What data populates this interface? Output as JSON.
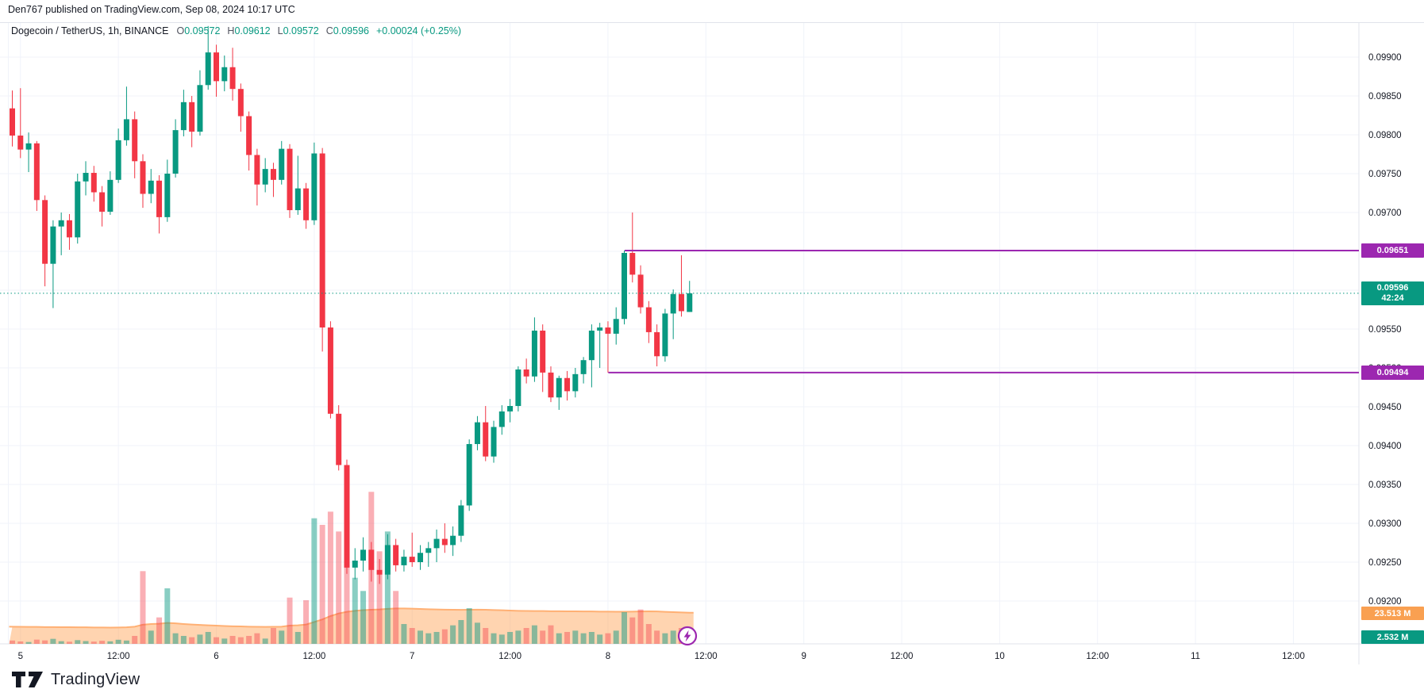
{
  "header": {
    "published_line": "Den767 published on TradingView.com, Sep 08, 2024 10:17 UTC"
  },
  "legend": {
    "symbol": "Dogecoin / TetherUS, 1h, BINANCE",
    "open_label": "O",
    "open": "0.09572",
    "high_label": "H",
    "high": "0.09612",
    "low_label": "L",
    "low": "0.09572",
    "close_label": "C",
    "close": "0.09596",
    "change": "+0.00024 (+0.25%)"
  },
  "footer": {
    "brand": "TradingView"
  },
  "colors": {
    "up": "#089981",
    "down": "#f23645",
    "vol_up": "rgba(8,153,129,0.48)",
    "vol_down": "rgba(242,54,69,0.40)",
    "ma_fill": "rgba(255,160,80,0.45)",
    "ma_line": "#ffb074",
    "level": "#9c27b0",
    "last_line": "#089981",
    "grid": "#f0f3fa",
    "border": "#e0e3eb",
    "axis_text": "#131722",
    "badge_orange": "#f9a051",
    "badge_teal": "#089981",
    "badge_purple": "#9c27b0"
  },
  "chart_data": {
    "type": "candlestick",
    "title": "Dogecoin / TetherUS, 1h, BINANCE",
    "interval": "1h",
    "price_scale": 1e-05,
    "y_axis": {
      "min": 0.092,
      "max": 0.099,
      "step": 0.0005,
      "tick_prices": [
        9900,
        9850,
        9800,
        9750,
        9700,
        9650,
        9600,
        9550,
        9500,
        9450,
        9400,
        9350,
        9300,
        9250,
        9200
      ]
    },
    "x_axis": {
      "grid": true,
      "ticks": [
        {
          "label": "5",
          "i": 1
        },
        {
          "label": "12:00",
          "i": 13
        },
        {
          "label": "6",
          "i": 25
        },
        {
          "label": "12:00",
          "i": 37
        },
        {
          "label": "7",
          "i": 49
        },
        {
          "label": "12:00",
          "i": 61
        },
        {
          "label": "8",
          "i": 73
        },
        {
          "label": "12:00",
          "i": 85
        },
        {
          "label": "9",
          "i": 97
        },
        {
          "label": "12:00",
          "i": 109
        },
        {
          "label": "10",
          "i": 121
        },
        {
          "label": "12:00",
          "i": 133
        },
        {
          "label": "11",
          "i": 145
        },
        {
          "label": "12:00",
          "i": 157
        }
      ]
    },
    "candles": [
      [
        9834,
        9857,
        9785,
        9799
      ],
      [
        9799,
        9860,
        9770,
        9781
      ],
      [
        9781,
        9803,
        9752,
        9789
      ],
      [
        9789,
        9792,
        9702,
        9716
      ],
      [
        9716,
        9722,
        9605,
        9634
      ],
      [
        9634,
        9690,
        9577,
        9682
      ],
      [
        9682,
        9700,
        9645,
        9690
      ],
      [
        9690,
        9698,
        9652,
        9668
      ],
      [
        9668,
        9750,
        9660,
        9740
      ],
      [
        9740,
        9766,
        9722,
        9751
      ],
      [
        9751,
        9760,
        9714,
        9726
      ],
      [
        9726,
        9734,
        9682,
        9701
      ],
      [
        9701,
        9753,
        9697,
        9742
      ],
      [
        9742,
        9808,
        9738,
        9793
      ],
      [
        9793,
        9862,
        9786,
        9820
      ],
      [
        9820,
        9830,
        9744,
        9766
      ],
      [
        9766,
        9775,
        9706,
        9724
      ],
      [
        9724,
        9756,
        9712,
        9741
      ],
      [
        9741,
        9748,
        9673,
        9694
      ],
      [
        9694,
        9768,
        9688,
        9750
      ],
      [
        9750,
        9820,
        9745,
        9806
      ],
      [
        9806,
        9858,
        9798,
        9842
      ],
      [
        9842,
        9850,
        9784,
        9804
      ],
      [
        9804,
        9883,
        9799,
        9864
      ],
      [
        9864,
        9940,
        9858,
        9906
      ],
      [
        9906,
        9916,
        9849,
        9869
      ],
      [
        9869,
        9902,
        9856,
        9887
      ],
      [
        9887,
        9912,
        9844,
        9859
      ],
      [
        9859,
        9866,
        9804,
        9824
      ],
      [
        9824,
        9830,
        9754,
        9774
      ],
      [
        9774,
        9782,
        9709,
        9736
      ],
      [
        9736,
        9770,
        9726,
        9756
      ],
      [
        9756,
        9764,
        9720,
        9742
      ],
      [
        9742,
        9792,
        9736,
        9782
      ],
      [
        9782,
        9788,
        9693,
        9703
      ],
      [
        9703,
        9773,
        9697,
        9731
      ],
      [
        9731,
        9738,
        9679,
        9690
      ],
      [
        9690,
        9790,
        9684,
        9776
      ],
      [
        9776,
        9783,
        9521,
        9552
      ],
      [
        9552,
        9560,
        9435,
        9441
      ],
      [
        9441,
        9452,
        9368,
        9375
      ],
      [
        9375,
        9382,
        9235,
        9243
      ],
      [
        9243,
        9268,
        9228,
        9252
      ],
      [
        9252,
        9282,
        9238,
        9266
      ],
      [
        9266,
        9276,
        9225,
        9240
      ],
      [
        9240,
        9254,
        9222,
        9234
      ],
      [
        9234,
        9286,
        9228,
        9272
      ],
      [
        9272,
        9280,
        9238,
        9246
      ],
      [
        9246,
        9266,
        9238,
        9257
      ],
      [
        9257,
        9288,
        9244,
        9250
      ],
      [
        9250,
        9272,
        9240,
        9262
      ],
      [
        9262,
        9276,
        9244,
        9268
      ],
      [
        9268,
        9292,
        9250,
        9280
      ],
      [
        9280,
        9300,
        9262,
        9272
      ],
      [
        9272,
        9296,
        9258,
        9284
      ],
      [
        9284,
        9330,
        9276,
        9323
      ],
      [
        9323,
        9408,
        9316,
        9402
      ],
      [
        9402,
        9438,
        9394,
        9430
      ],
      [
        9430,
        9451,
        9380,
        9386
      ],
      [
        9386,
        9432,
        9378,
        9424
      ],
      [
        9424,
        9452,
        9414,
        9444
      ],
      [
        9444,
        9460,
        9430,
        9451
      ],
      [
        9451,
        9502,
        9444,
        9498
      ],
      [
        9498,
        9512,
        9480,
        9489
      ],
      [
        9489,
        9565,
        9482,
        9548
      ],
      [
        9548,
        9556,
        9469,
        9494
      ],
      [
        9494,
        9502,
        9456,
        9462
      ],
      [
        9462,
        9490,
        9446,
        9487
      ],
      [
        9487,
        9496,
        9458,
        9470
      ],
      [
        9470,
        9500,
        9462,
        9492
      ],
      [
        9492,
        9514,
        9480,
        9510
      ],
      [
        9510,
        9556,
        9475,
        9548
      ],
      [
        9548,
        9558,
        9500,
        9552
      ],
      [
        9552,
        9560,
        9494,
        9544
      ],
      [
        9544,
        9578,
        9530,
        9563
      ],
      [
        9563,
        9651,
        9556,
        9648
      ],
      [
        9648,
        9700,
        9610,
        9620
      ],
      [
        9620,
        9632,
        9570,
        9578
      ],
      [
        9578,
        9586,
        9532,
        9546
      ],
      [
        9546,
        9556,
        9502,
        9515
      ],
      [
        9515,
        9576,
        9508,
        9570
      ],
      [
        9570,
        9601,
        9537,
        9595
      ],
      [
        9595,
        9645,
        9566,
        9573
      ],
      [
        9572,
        9612,
        9572,
        9596
      ]
    ],
    "volume_m": [
      2.5,
      1.8,
      1.4,
      3.2,
      2.6,
      3.8,
      2.0,
      1.6,
      2.8,
      2.1,
      1.7,
      2.3,
      1.9,
      3.1,
      2.5,
      6,
      55,
      10,
      20,
      42,
      8,
      6,
      5,
      7,
      9,
      5,
      4,
      6,
      5,
      6,
      8,
      4,
      12,
      10,
      35,
      9,
      33,
      95,
      90,
      100,
      85,
      60,
      50,
      40,
      115,
      70,
      85,
      40,
      15,
      12,
      10,
      8,
      9,
      11,
      14,
      18,
      27,
      16,
      12,
      8,
      7,
      9,
      10,
      12,
      14,
      10,
      14,
      8,
      9,
      10,
      8,
      9,
      7,
      8,
      10,
      24,
      20,
      26,
      15,
      10,
      8,
      10,
      12,
      2.532
    ],
    "volume_ma_m": [
      13.0,
      12.9,
      12.8,
      12.8,
      12.7,
      12.7,
      12.6,
      12.6,
      12.5,
      12.5,
      12.4,
      12.4,
      12.3,
      12.4,
      12.5,
      13.0,
      14.5,
      15.0,
      15.2,
      15.8,
      15.5,
      15.0,
      14.6,
      14.3,
      14.0,
      13.8,
      13.5,
      13.3,
      13.2,
      13.0,
      12.9,
      12.8,
      12.9,
      13.0,
      13.8,
      14.0,
      14.6,
      16.5,
      18.5,
      21.0,
      23.0,
      24.2,
      25.0,
      25.5,
      25.8,
      26.0,
      26.5,
      26.8,
      26.8,
      26.6,
      26.4,
      26.2,
      26.0,
      25.9,
      25.8,
      25.7,
      25.8,
      25.9,
      25.8,
      25.6,
      25.4,
      25.2,
      25.0,
      24.9,
      24.8,
      24.8,
      24.7,
      24.7,
      24.6,
      24.6,
      24.5,
      24.5,
      24.4,
      24.4,
      24.3,
      24.3,
      24.4,
      24.5,
      24.6,
      24.5,
      24.2,
      24.0,
      23.8,
      23.513
    ],
    "levels": [
      {
        "label": "0.09651",
        "price": 9651,
        "start_index": 75
      },
      {
        "label": "0.09494",
        "price": 9494,
        "start_index": 73
      }
    ],
    "last_price": {
      "label": "0.09596",
      "price": 9596,
      "countdown": "42:24"
    },
    "volume_ma_badge": "23.513 M",
    "volume_badge": "2.532 M"
  }
}
